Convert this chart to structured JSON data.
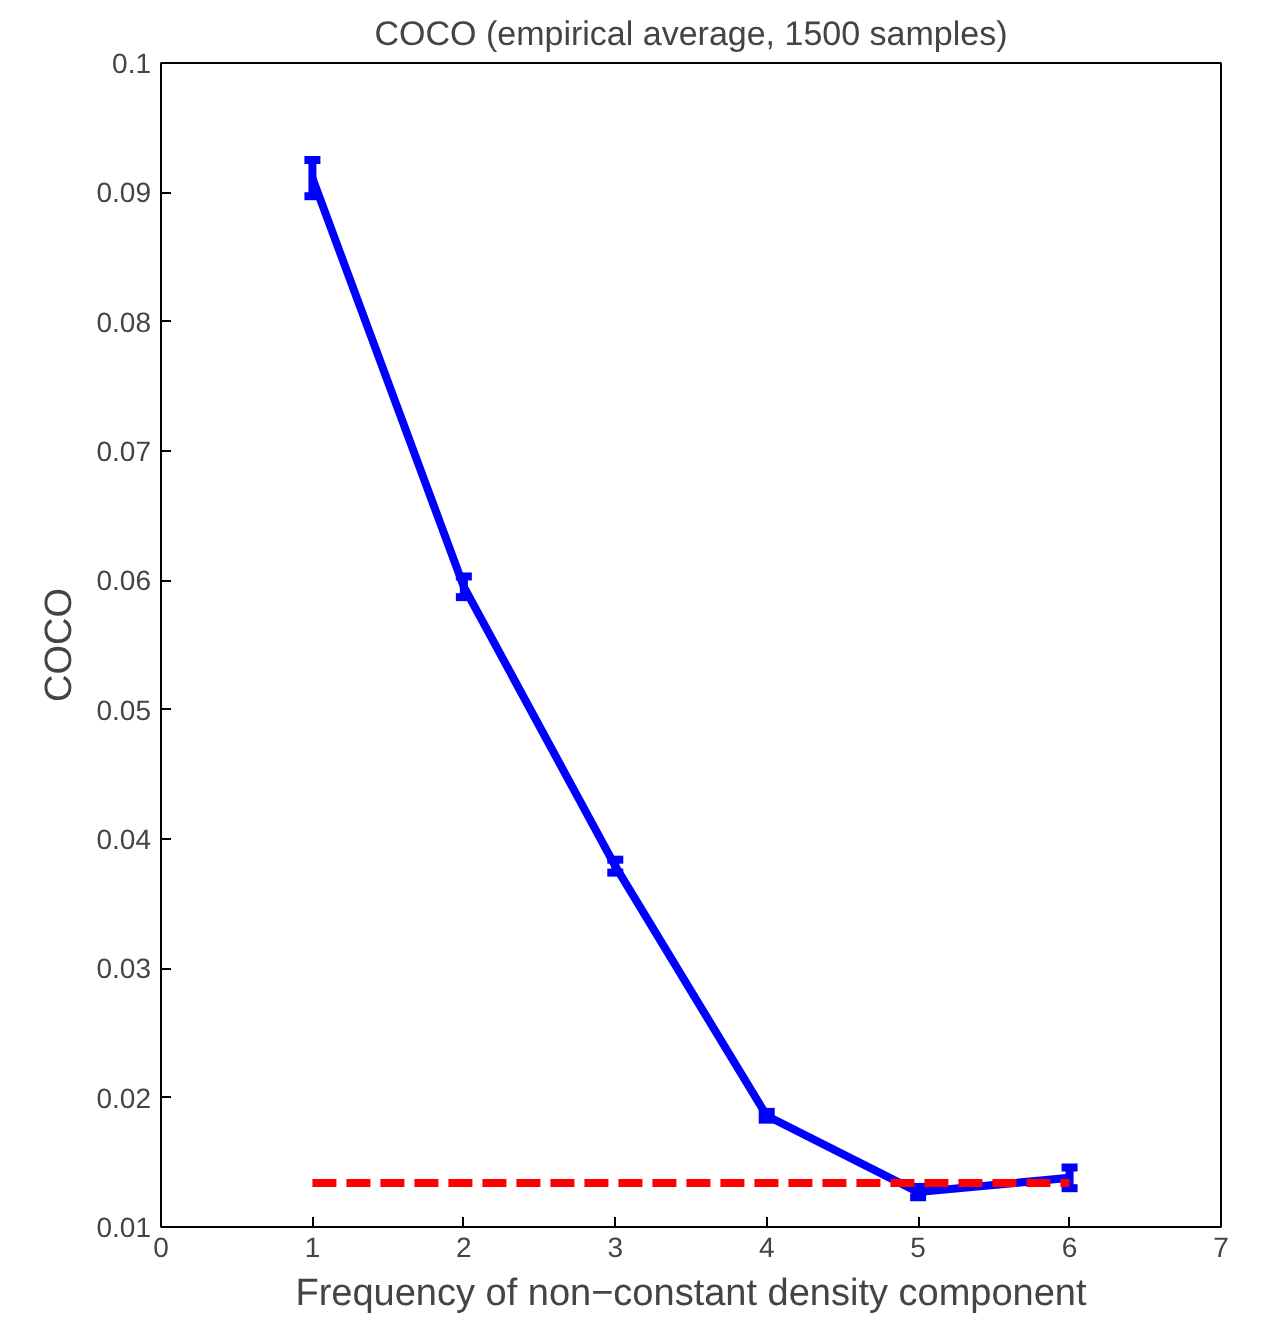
{
  "chart_data": {
    "type": "line",
    "title": "COCO (empirical average, 1500 samples)",
    "xlabel": "Frequency of non−constant density component",
    "ylabel": "COCO",
    "xlim": [
      0,
      7
    ],
    "xticks": [
      0,
      1,
      2,
      3,
      4,
      5,
      6,
      7
    ],
    "ylim": [
      0.01,
      0.1
    ],
    "yticks": [
      0.01,
      0.02,
      0.03,
      0.04,
      0.05,
      0.06,
      0.07,
      0.08,
      0.09,
      0.1
    ],
    "grid": false,
    "series": [
      {
        "x": [
          1,
          2,
          3,
          4,
          5,
          6
        ],
        "values": [
          0.0911,
          0.0595,
          0.0379,
          0.0186,
          0.0127,
          0.0138
        ],
        "errors": [
          0.0014,
          0.0008,
          0.0005,
          0.0003,
          0.0004,
          0.0008
        ],
        "color": "#0000ff",
        "line_style": "solid"
      },
      {
        "x": [
          1,
          6
        ],
        "values": [
          0.0134,
          0.0134
        ],
        "color": "#ff0000",
        "line_style": "dashed"
      }
    ]
  }
}
